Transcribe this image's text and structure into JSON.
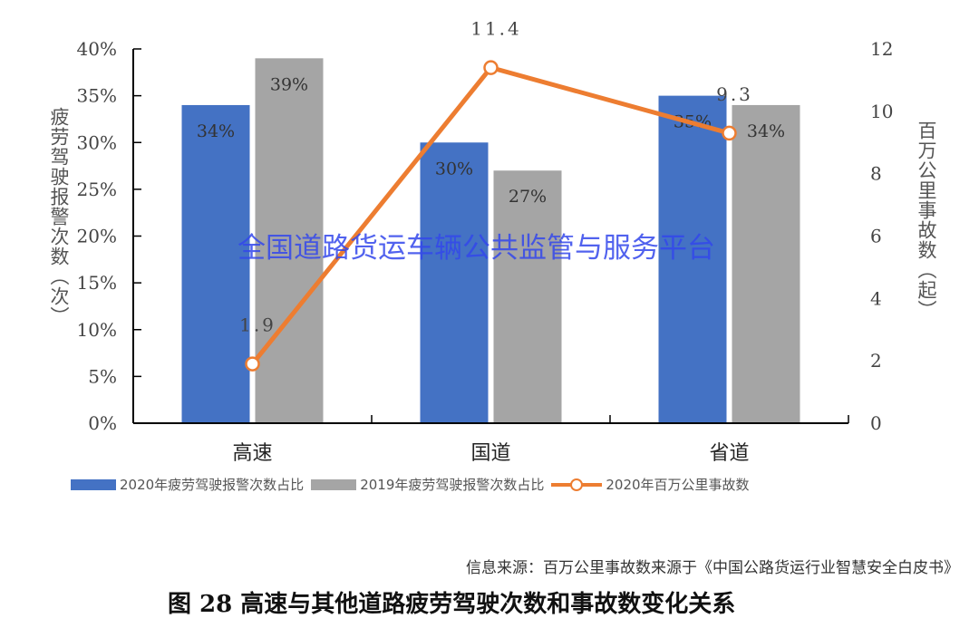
{
  "chart_data": {
    "type": "bar",
    "categories": [
      "高速",
      "国道",
      "省道"
    ],
    "series": [
      {
        "name": "2020年疲劳驾驶报警次数占比",
        "type": "bar",
        "axis": "left",
        "values": [
          34,
          30,
          35
        ],
        "labels": [
          "34%",
          "30%",
          "35%"
        ],
        "color": "#4472c4"
      },
      {
        "name": "2019年疲劳驾驶报警次数占比",
        "type": "bar",
        "axis": "left",
        "values": [
          39,
          27,
          34
        ],
        "labels": [
          "39%",
          "27%",
          "34%"
        ],
        "color": "#a5a5a5"
      },
      {
        "name": "2020年百万公里事故数",
        "type": "line",
        "axis": "right",
        "values": [
          1.9,
          11.4,
          9.3
        ],
        "labels": [
          "1.9",
          "11.4",
          "9.3"
        ],
        "color": "#ed7d31"
      }
    ],
    "ylabel": "疲劳驾驶报警次数（次）",
    "ylabel_right": "百万公里事故数（起）",
    "ylim": [
      0,
      40
    ],
    "yticks": [
      "0%",
      "5%",
      "10%",
      "15%",
      "20%",
      "25%",
      "30%",
      "35%",
      "40%"
    ],
    "ylim_right": [
      0,
      12
    ],
    "yticks_right": [
      "0",
      "2",
      "4",
      "6",
      "8",
      "10",
      "12"
    ],
    "legend_position": "bottom",
    "grid": false
  },
  "watermark": "全国道路货运车辆公共监管与服务平台",
  "source": "信息来源：百万公里事故数来源于《中国公路货运行业智慧安全白皮书》",
  "caption": "图 28 高速与其他道路疲劳驾驶次数和事故数变化关系"
}
